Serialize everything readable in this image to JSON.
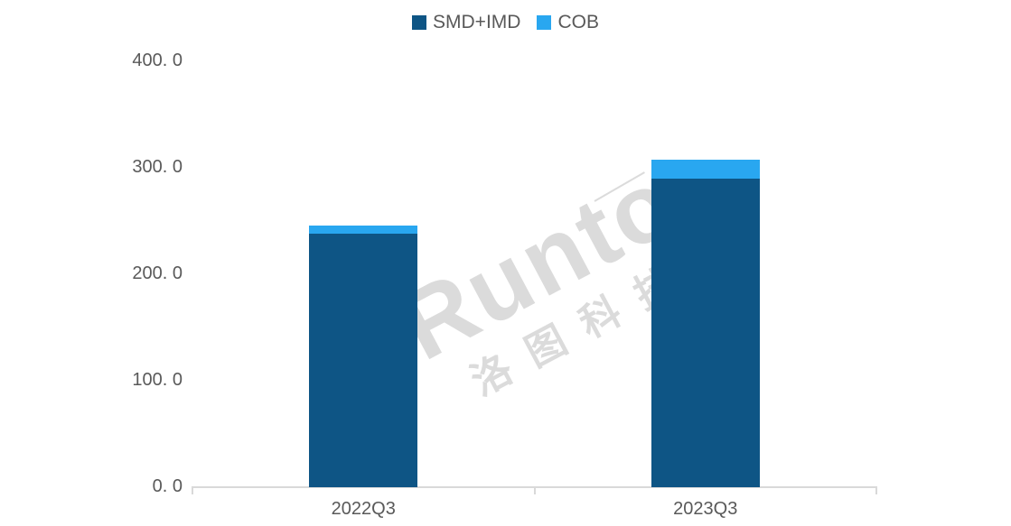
{
  "watermark": {
    "line1": "Runto",
    "line2": "洛图科技"
  },
  "axis_color": "#d9d9d9",
  "text_color": "#595959",
  "chart_data": {
    "type": "bar",
    "stacked": true,
    "title": "",
    "xlabel": "",
    "ylabel": "",
    "categories": [
      "2022Q3",
      "2023Q3"
    ],
    "series": [
      {
        "name": "SMD+IMD",
        "color": "#0e5585",
        "values": [
          238.5,
          289.5
        ]
      },
      {
        "name": "COB",
        "color": "#29a7f0",
        "values": [
          7.0,
          18.5
        ]
      }
    ],
    "totals": [
      245.5,
      308.0
    ],
    "ylim": [
      0,
      400
    ],
    "ytick_step": 100,
    "ytick_labels": [
      "0. 0",
      "100. 0",
      "200. 0",
      "300. 0",
      "400. 0"
    ],
    "legend_position": "top-center",
    "grid": false
  }
}
